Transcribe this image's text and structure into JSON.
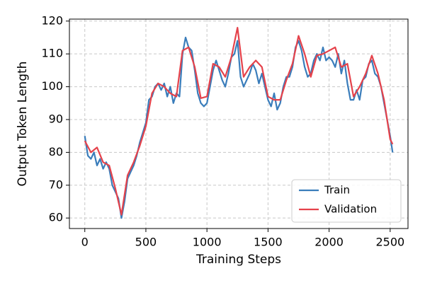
{
  "chart_data": {
    "type": "line",
    "xlabel": "Training Steps",
    "ylabel": "Output Token Length",
    "xlim": [
      -126,
      2646
    ],
    "ylim": [
      56.8,
      120.6
    ],
    "xticks": [
      0,
      500,
      1000,
      1500,
      2000,
      2500
    ],
    "yticks": [
      60,
      70,
      80,
      90,
      100,
      110,
      120
    ],
    "grid": true,
    "legend": "lower right",
    "series": [
      {
        "name": "Train",
        "color": "#3a7dbb",
        "x": [
          0,
          25,
          50,
          75,
          100,
          125,
          150,
          175,
          200,
          225,
          250,
          275,
          300,
          325,
          350,
          375,
          400,
          425,
          450,
          475,
          500,
          525,
          550,
          575,
          600,
          625,
          650,
          675,
          700,
          725,
          750,
          775,
          800,
          825,
          850,
          875,
          900,
          925,
          950,
          975,
          1000,
          1025,
          1050,
          1075,
          1100,
          1125,
          1150,
          1175,
          1200,
          1225,
          1250,
          1275,
          1300,
          1325,
          1350,
          1375,
          1400,
          1425,
          1450,
          1475,
          1500,
          1525,
          1550,
          1575,
          1600,
          1625,
          1650,
          1675,
          1700,
          1725,
          1750,
          1775,
          1800,
          1825,
          1850,
          1875,
          1900,
          1925,
          1950,
          1975,
          2000,
          2025,
          2050,
          2075,
          2100,
          2125,
          2150,
          2175,
          2200,
          2225,
          2250,
          2275,
          2300,
          2325,
          2350,
          2375,
          2400,
          2425,
          2450,
          2475,
          2500,
          2520
        ],
        "values": [
          85,
          79,
          78,
          80,
          76,
          78,
          75,
          77,
          75,
          70,
          68,
          66,
          60,
          65,
          72,
          74,
          76,
          79,
          83,
          86,
          89,
          96,
          97,
          100,
          101,
          99,
          101,
          97,
          100,
          95,
          98,
          97,
          110,
          115,
          112,
          111,
          105,
          98,
          95,
          94,
          95,
          100,
          105,
          108,
          105,
          102,
          100,
          104,
          109,
          110,
          114,
          103,
          100,
          102,
          104,
          107,
          105,
          101,
          104,
          100,
          96,
          94,
          98,
          93,
          95,
          100,
          103,
          103,
          106,
          112,
          114,
          111,
          106,
          103,
          104,
          108,
          110,
          108,
          112,
          108,
          109,
          108,
          106,
          110,
          104,
          108,
          101,
          96,
          96,
          99,
          96,
          102,
          103,
          107,
          108,
          104,
          103,
          100,
          95,
          90,
          85,
          80
        ]
      },
      {
        "name": "Validation",
        "color": "#e5424b",
        "x": [
          0,
          50,
          100,
          150,
          200,
          250,
          300,
          350,
          400,
          450,
          500,
          550,
          600,
          650,
          700,
          750,
          800,
          850,
          900,
          950,
          1000,
          1050,
          1100,
          1150,
          1200,
          1250,
          1300,
          1350,
          1400,
          1450,
          1500,
          1550,
          1600,
          1650,
          1700,
          1750,
          1800,
          1850,
          1900,
          1950,
          2000,
          2050,
          2100,
          2150,
          2200,
          2250,
          2300,
          2350,
          2400,
          2450,
          2500,
          2520
        ],
        "values": [
          83.5,
          80,
          81.5,
          77,
          76,
          69,
          61,
          73,
          77,
          82,
          88,
          98,
          101,
          100,
          98,
          97,
          111,
          112,
          106,
          96.5,
          97,
          107,
          106,
          103,
          109,
          118,
          103,
          106,
          108,
          106,
          97,
          96,
          96,
          102,
          107,
          115.5,
          110,
          103,
          109.5,
          110,
          111,
          112,
          106,
          107,
          97,
          100,
          104,
          109.5,
          104,
          96,
          84,
          82.5
        ]
      }
    ]
  }
}
